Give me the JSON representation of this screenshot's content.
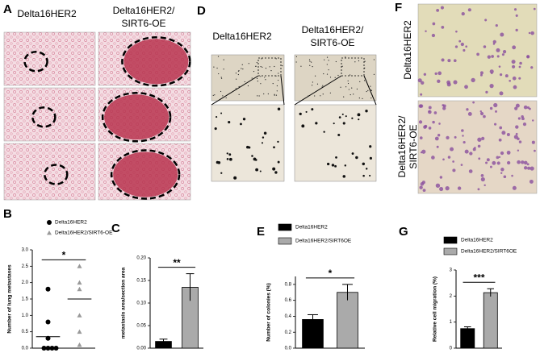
{
  "panels": {
    "a": "A",
    "b": "B",
    "c": "C",
    "d": "D",
    "e": "E",
    "f": "F",
    "g": "G"
  },
  "images": {
    "a_col1": "Delta16HER2",
    "a_col2_line1": "Delta16HER2/",
    "a_col2_line2": "SIRT6-OE",
    "d_col1": "Delta16HER2",
    "d_col2_line1": "Delta16HER2/",
    "d_col2_line2": "SIRT6-OE",
    "f_row1": "Delta16HER2",
    "f_row2_line1": "Delta16HER2/",
    "f_row2_line2": "SIRT6-OE"
  },
  "chart_data": [
    {
      "type": "dot",
      "ylabel": "Number of lung metastases",
      "significance": "*",
      "series": [
        {
          "name": "Delta16HER2",
          "color": "#000000",
          "marker": "circle",
          "values": [
            1.8,
            0.8,
            0.3,
            0,
            0,
            0,
            0
          ],
          "mean": 0.35
        },
        {
          "name": "Delta16HER2/SIRT6-OE",
          "color": "#999999",
          "marker": "triangle",
          "values": [
            2.5,
            2.0,
            1.8,
            1.0,
            0.5,
            0.1
          ],
          "mean": 1.5
        }
      ],
      "ylim": [
        0,
        3
      ],
      "yticks": [
        {
          "value": 0,
          "label": "0.0"
        },
        0.5,
        {
          "value": 1,
          "label": "1.0"
        },
        1.5,
        {
          "value": 2,
          "label": "2.0"
        },
        2.5,
        {
          "value": 3,
          "label": "3.0"
        }
      ]
    },
    {
      "type": "bar",
      "ylabel": "metastasis area/section area",
      "significance": "**",
      "series": [
        {
          "color": "#000000",
          "values": [
            0.015
          ],
          "errors": [
            0.005
          ]
        },
        {
          "color": "#aaaaaa",
          "values": [
            0.135
          ],
          "errors": [
            0.03
          ]
        }
      ],
      "ylim": [
        0,
        0.2
      ],
      "yticks": [
        {
          "value": 0,
          "label": "0.00"
        },
        0.05,
        {
          "value": 0.1,
          "label": "0.10"
        },
        0.15,
        {
          "value": 0.2,
          "label": "0.20"
        }
      ]
    },
    {
      "type": "bar",
      "ylabel": "Number of colonies (%)",
      "significance": "*",
      "series": [
        {
          "name": "Delta16HER2",
          "color": "#000000",
          "values": [
            0.36
          ],
          "errors": [
            0.06
          ]
        },
        {
          "name": "Delta16HER2/SIRT6OE",
          "color": "#aaaaaa",
          "values": [
            0.7
          ],
          "errors": [
            0.1
          ]
        }
      ],
      "ylim": [
        0,
        0.9
      ],
      "yticks": [
        {
          "value": 0,
          "label": "0.0"
        },
        0.2,
        0.4,
        0.6,
        0.8
      ]
    },
    {
      "type": "bar",
      "ylabel": "Relative cell migration (%)",
      "significance": "***",
      "series": [
        {
          "name": "Delta16HER2",
          "color": "#000000",
          "values": [
            0.75
          ],
          "errors": [
            0.07
          ]
        },
        {
          "name": "Delta16HER2/SIRT6OE",
          "color": "#aaaaaa",
          "values": [
            2.13
          ],
          "errors": [
            0.15
          ]
        }
      ],
      "ylim": [
        0,
        3
      ],
      "yticks": [
        0,
        1,
        2,
        3
      ]
    }
  ]
}
